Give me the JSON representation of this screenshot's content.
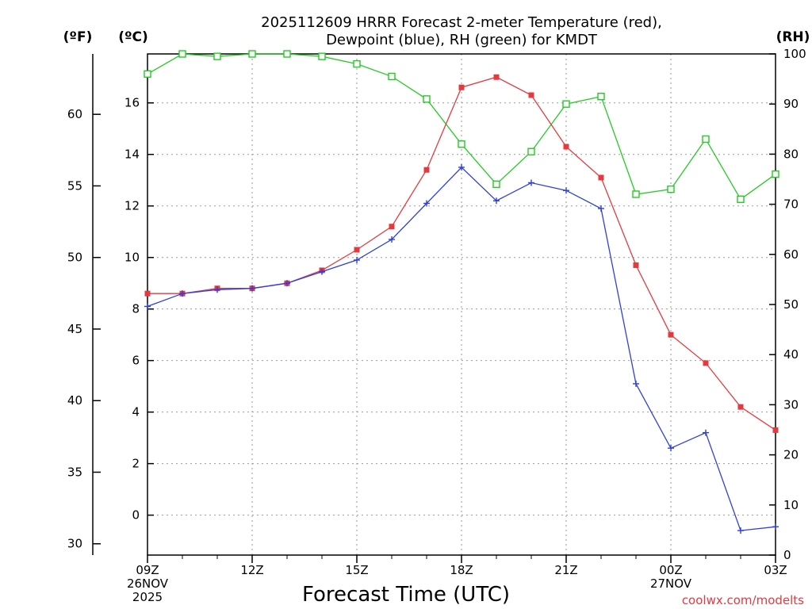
{
  "chart_data": {
    "type": "line",
    "title_line1": "2025112609 HRRR Forecast 2-meter Temperature (red),",
    "title_line2": "Dewpoint (blue), RH (green) for KMDT",
    "xlabel": "Forecast Time (UTC)",
    "credit": "coolwx.com/modelts",
    "unit_f": "(ºF)",
    "unit_c": "(ºC)",
    "unit_rh": "(RH)",
    "x_hours": [
      0,
      1,
      2,
      3,
      4,
      5,
      6,
      7,
      8,
      9,
      10,
      11,
      12,
      13,
      14,
      15,
      16,
      17,
      18
    ],
    "xlim": [
      0,
      18
    ],
    "x_ticks": [
      {
        "hour": 0,
        "lines": [
          "09Z",
          "26NOV",
          "2025"
        ]
      },
      {
        "hour": 3,
        "lines": [
          "12Z"
        ]
      },
      {
        "hour": 6,
        "lines": [
          "15Z"
        ]
      },
      {
        "hour": 9,
        "lines": [
          "18Z"
        ]
      },
      {
        "hour": 12,
        "lines": [
          "21Z"
        ]
      },
      {
        "hour": 15,
        "lines": [
          "00Z",
          "27NOV"
        ]
      },
      {
        "hour": 18,
        "lines": [
          "03Z"
        ]
      }
    ],
    "celsius_axis": {
      "lim": [
        -1.55,
        17.9
      ],
      "ticks": [
        "0",
        "2",
        "4",
        "6",
        "8",
        "10",
        "12",
        "14",
        "16"
      ]
    },
    "fahrenheit_axis": {
      "ticks": [
        "30",
        "35",
        "40",
        "45",
        "50",
        "55",
        "60"
      ]
    },
    "rh_axis": {
      "lim": [
        0,
        100
      ],
      "ticks": [
        "0",
        "10",
        "20",
        "30",
        "40",
        "50",
        "60",
        "70",
        "80",
        "90",
        "100"
      ]
    },
    "colors": {
      "temperature": "#e6393f",
      "dewpoint": "#2d3fe0",
      "rh": "#22cc22"
    },
    "series": [
      {
        "name": "Temperature",
        "unit": "C",
        "marker": "square-filled",
        "values": [
          8.6,
          8.6,
          8.8,
          8.8,
          9.0,
          9.5,
          10.3,
          11.2,
          13.4,
          16.6,
          17.0,
          16.3,
          14.3,
          13.1,
          9.7,
          7.0,
          5.9,
          4.2,
          3.3
        ]
      },
      {
        "name": "Dewpoint",
        "unit": "C",
        "marker": "plus",
        "values": [
          8.1,
          8.6,
          8.75,
          8.8,
          9.0,
          9.45,
          9.9,
          10.7,
          12.1,
          13.5,
          12.2,
          12.9,
          12.6,
          11.9,
          5.1,
          2.6,
          3.2,
          -0.6,
          -0.45
        ]
      },
      {
        "name": "RH",
        "unit": "%",
        "marker": "square-open",
        "values": [
          96,
          100,
          99.5,
          100,
          100,
          99.5,
          98,
          95.5,
          91,
          82,
          74,
          80.5,
          90,
          91.5,
          72,
          73,
          83,
          71,
          76
        ]
      }
    ]
  }
}
